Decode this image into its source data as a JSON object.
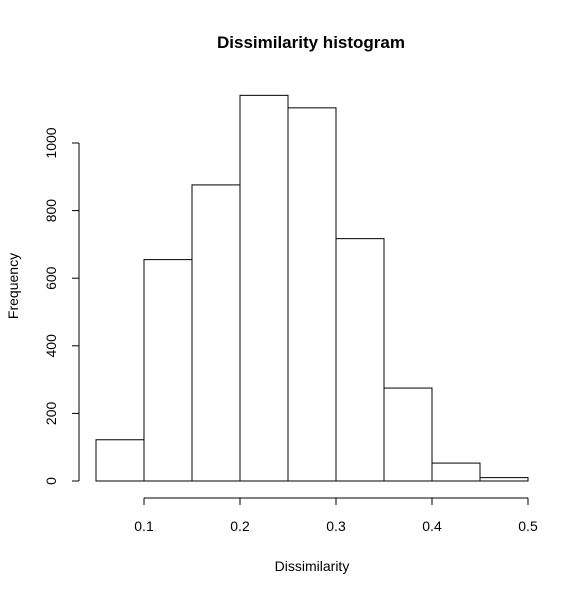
{
  "chart_data": {
    "type": "bar",
    "title": "Dissimilarity histogram",
    "xlabel": "Dissimilarity",
    "ylabel": "Frequency",
    "bins": [
      {
        "start": 0.05,
        "end": 0.1,
        "count": 122
      },
      {
        "start": 0.1,
        "end": 0.15,
        "count": 655
      },
      {
        "start": 0.15,
        "end": 0.2,
        "count": 876
      },
      {
        "start": 0.2,
        "end": 0.25,
        "count": 1141
      },
      {
        "start": 0.25,
        "end": 0.3,
        "count": 1104
      },
      {
        "start": 0.3,
        "end": 0.35,
        "count": 717
      },
      {
        "start": 0.35,
        "end": 0.4,
        "count": 275
      },
      {
        "start": 0.4,
        "end": 0.45,
        "count": 53
      },
      {
        "start": 0.45,
        "end": 0.5,
        "count": 10
      }
    ],
    "xlim": [
      0.05,
      0.5
    ],
    "ylim": [
      0,
      1150
    ],
    "x_ticks": [
      0.1,
      0.2,
      0.3,
      0.4,
      0.5
    ],
    "x_tick_labels": [
      "0.1",
      "0.2",
      "0.3",
      "0.4",
      "0.5"
    ],
    "y_ticks": [
      0,
      200,
      400,
      600,
      800,
      1000
    ],
    "y_tick_labels": [
      "0",
      "200",
      "400",
      "600",
      "800",
      "1000"
    ],
    "grid": false,
    "colors": {
      "bar_fill": "#ffffff",
      "bar_stroke": "#000000"
    }
  }
}
